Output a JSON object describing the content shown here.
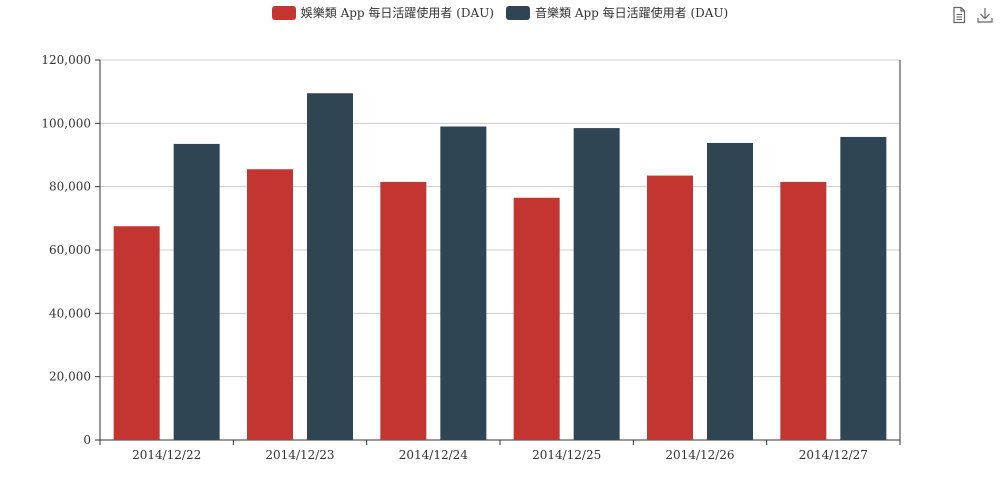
{
  "colors": {
    "series_1": "#c23531",
    "series_2": "#2f4554",
    "axis": "#333333",
    "grid": "#cccccc",
    "text": "#333333",
    "icon": "#666666"
  },
  "toolbox": {
    "data_view_icon": "document-icon",
    "save_image_icon": "download-icon"
  },
  "chart_data": {
    "type": "bar",
    "categories": [
      "2014/12/22",
      "2014/12/23",
      "2014/12/24",
      "2014/12/25",
      "2014/12/26",
      "2014/12/27"
    ],
    "series": [
      {
        "name": "娛樂類 App 每日活躍使用者 (DAU)",
        "values": [
          67500,
          85500,
          81500,
          76500,
          83500,
          81500
        ]
      },
      {
        "name": "音樂類 App 每日活躍使用者 (DAU)",
        "values": [
          93500,
          109500,
          99000,
          98500,
          93800,
          95700
        ]
      }
    ],
    "yticks": [
      "0",
      "20,000",
      "40,000",
      "60,000",
      "80,000",
      "100,000",
      "120,000"
    ],
    "ylim": [
      0,
      120000
    ],
    "title": "",
    "xlabel": "",
    "ylabel": "",
    "grid": true,
    "legend_position": "top-center"
  }
}
